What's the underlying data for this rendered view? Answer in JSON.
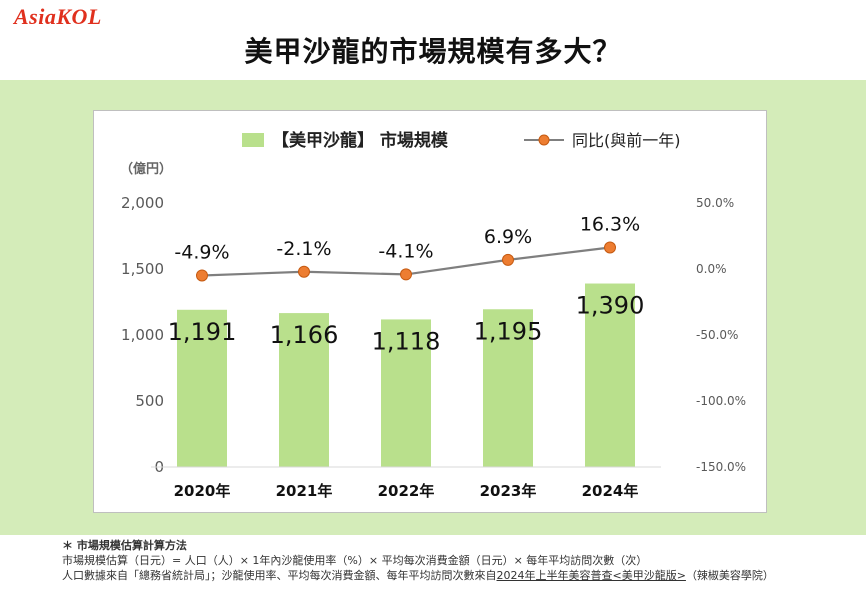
{
  "logo_text": "AsiaKOL",
  "title": "美甲沙龍的市場規模有多大？",
  "chart_data": {
    "type": "bar",
    "categories": [
      "2020年",
      "2021年",
      "2022年",
      "2023年",
      "2024年"
    ],
    "series": [
      {
        "name": "【美甲沙龍】 市場規模",
        "type": "bar",
        "axis": "left",
        "values": [
          1191,
          1166,
          1118,
          1195,
          1390
        ],
        "labels": [
          "1,191",
          "1,166",
          "1,118",
          "1,195",
          "1,390"
        ]
      },
      {
        "name": "同比(與前一年)",
        "type": "line",
        "axis": "right",
        "values": [
          -4.9,
          -2.1,
          -4.1,
          6.9,
          16.3
        ],
        "labels": [
          "-4.9%",
          "-2.1%",
          "-4.1%",
          "6.9%",
          "16.3%"
        ]
      }
    ],
    "ylabel": "（億円）",
    "ylim": [
      0,
      2000
    ],
    "yticks": [
      0,
      500,
      1000,
      1500,
      2000
    ],
    "ytick_labels": [
      "0",
      "500",
      "1,000",
      "1,500",
      "2,000"
    ],
    "y2lim": [
      -150,
      50
    ],
    "y2ticks": [
      -150,
      -100,
      -50,
      0,
      50
    ],
    "y2tick_labels": [
      "-150.0%",
      "-100.0%",
      "-50.0%",
      "0.0%",
      "50.0%"
    ],
    "legend_position": "top",
    "grid": false,
    "colors": {
      "bar": "#b9e08c",
      "line": "#7f7f7f",
      "marker": "#ed7d31",
      "marker_edge": "#c55a11"
    }
  },
  "footnotes": {
    "heading": "＊ 市場規模估算計算方法",
    "formula": "市場規模估算（日元）= 人口（人）× 1年內沙龍使用率（%）× 平均每次消費金額（日元）× 每年平均訪問次數（次）",
    "source_prefix": "人口數據來自「總務省統計局」；沙龍使用率、平均每次消費金額、每年平均訪問次數來自",
    "source_link": "2024年上半年美容普查<美甲沙龍版>",
    "source_suffix": "（辣椒美容學院）"
  }
}
